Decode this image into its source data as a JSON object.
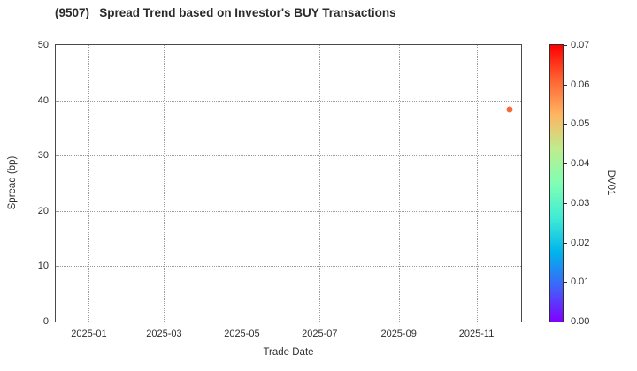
{
  "chart_data": {
    "type": "scatter",
    "title": "(9507)   Spread Trend based on Investor's BUY Transactions",
    "xlabel": "Trade Date",
    "ylabel": "Spread (bp)",
    "x_range": [
      "2024-12-06",
      "2025-12-06"
    ],
    "ylim": [
      0,
      50
    ],
    "yticks": [
      0,
      10,
      20,
      30,
      40,
      50
    ],
    "xticks": [
      "2025-01",
      "2025-03",
      "2025-05",
      "2025-07",
      "2025-09",
      "2025-11"
    ],
    "grid": true,
    "legend": "none",
    "points": [
      {
        "date": "2025-11-27",
        "spread_bp": 38.3,
        "dv01": 0.06,
        "color": "#f4693c"
      }
    ],
    "colorbar": {
      "label": "DV01",
      "min": 0.0,
      "max": 0.07,
      "ticks": [
        "0.00",
        "0.01",
        "0.02",
        "0.03",
        "0.04",
        "0.05",
        "0.06",
        "0.07"
      ],
      "gradient_stops": [
        "#8000ff",
        "#4062fa",
        "#00b4ec",
        "#40ecd4",
        "#80ffb4",
        "#bfec8e",
        "#ffb461",
        "#ff6232",
        "#ff0000"
      ]
    },
    "colors": {
      "spine": "#4a4a4a",
      "grid": "#9a9a9a",
      "text": "#2e2e2e",
      "background": "#ffffff"
    }
  }
}
